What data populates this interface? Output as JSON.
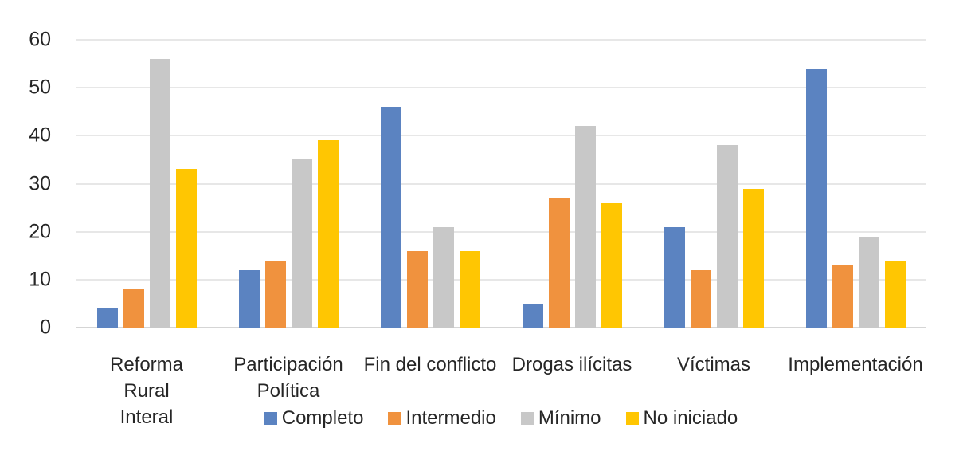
{
  "chart_data": {
    "type": "bar",
    "title": "",
    "xlabel": "",
    "ylabel": "",
    "categories": [
      "Reforma\nRural\nInteral",
      "Participación\nPolítica",
      "Fin del conflicto",
      "Drogas ilícitas",
      "Víctimas",
      "Implementación"
    ],
    "series": [
      {
        "name": "Completo",
        "color": "#5B83C1",
        "values": [
          4,
          12,
          46,
          5,
          21,
          54
        ]
      },
      {
        "name": "Intermedio",
        "color": "#F0923E",
        "values": [
          8,
          14,
          16,
          27,
          12,
          13
        ]
      },
      {
        "name": "Mínimo",
        "color": "#C8C8C8",
        "values": [
          56,
          35,
          21,
          42,
          38,
          19
        ]
      },
      {
        "name": "No iniciado",
        "color": "#FFC602",
        "values": [
          33,
          39,
          16,
          26,
          29,
          14
        ]
      }
    ],
    "ylim": [
      0,
      60
    ],
    "yticks": [
      0,
      10,
      20,
      30,
      40,
      50,
      60
    ],
    "grid": true,
    "legend_position": "bottom",
    "colors": {
      "gridline": "#E7E7E7",
      "axis_line": "#D5D5D5",
      "text": "#262626",
      "background": "#FFFFFF"
    }
  }
}
